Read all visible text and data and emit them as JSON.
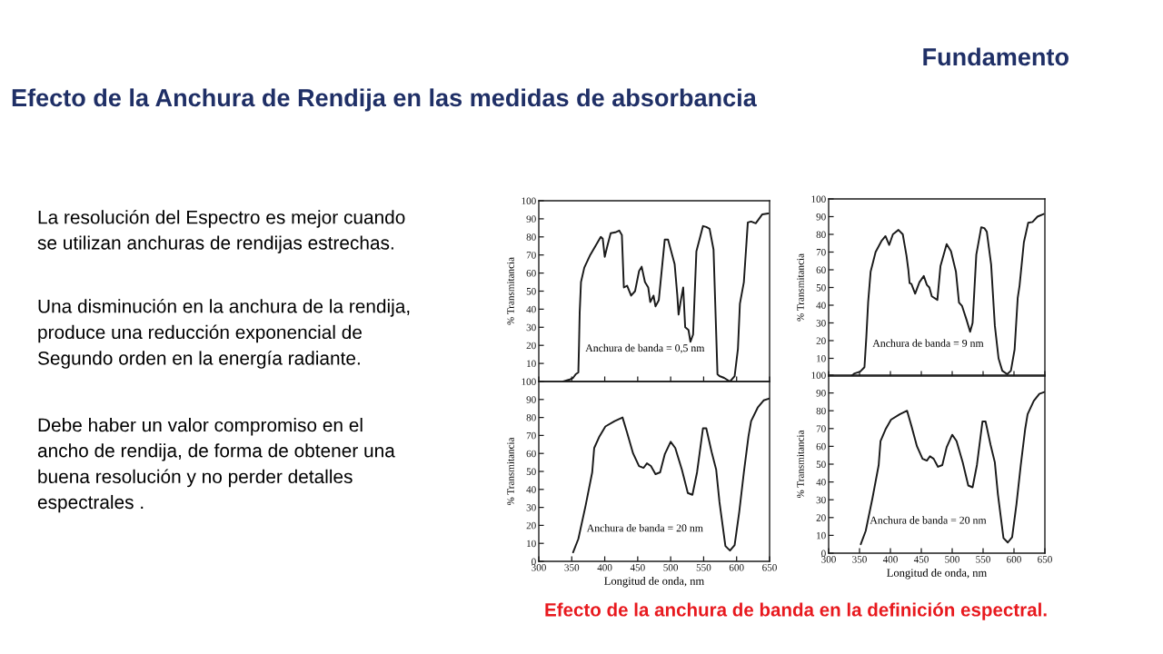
{
  "chart_data": [
    {
      "type": "other",
      "title": "Efecto de la Anchura de Rendija en las medidas de absorbancia",
      "annotations": [
        "Fundamento",
        "La resolución del Espectro es mejor cuando\nse utilizan anchuras de rendijas estrechas.",
        "Una disminución en la anchura de la rendija,\nproduce una reducción exponencial de\nSegundo orden en la energía radiante.",
        "Debe haber un valor compromiso en el\nancho de rendija, de forma de obtener una\nbuena resolución y no perder detalles\nespectrales .",
        "Efecto de la anchura de banda en la definición espectral."
      ]
    },
    {
      "type": "line",
      "ylabel": "% Transmitancia",
      "annotations": [
        "Anchura de banda = 0,5 nm"
      ],
      "xlim": [
        300,
        650
      ],
      "xticks": [
        300,
        350,
        400,
        450,
        500,
        550,
        600,
        650
      ],
      "ylim": [
        0,
        100
      ],
      "yticks": [
        10,
        20,
        30,
        40,
        50,
        60,
        70,
        80,
        90,
        100
      ],
      "tick_labels": "y",
      "series": [
        {
          "color": "#1a1a1a",
          "x": [
            337,
            346,
            352,
            356,
            360,
            361,
            362,
            364,
            369,
            378,
            386,
            394,
            397,
            400,
            404,
            409,
            416,
            422,
            426,
            429,
            434,
            440,
            446,
            452,
            456,
            461,
            466,
            469,
            474,
            477,
            482,
            491,
            496,
            506,
            510,
            512,
            515,
            519,
            522,
            527,
            530,
            534,
            539,
            549,
            554,
            559,
            565,
            571,
            574,
            581,
            590,
            597,
            602,
            605,
            611,
            617,
            622,
            629,
            639,
            648
          ],
          "values": [
            0,
            1,
            2,
            4,
            5,
            20,
            38,
            55,
            63,
            70,
            75,
            80,
            79,
            69,
            75,
            82,
            82.5,
            83.5,
            81,
            52,
            53,
            47.5,
            50,
            61,
            63.5,
            55,
            52,
            44,
            47.5,
            41.5,
            45,
            78.5,
            78.5,
            65,
            48,
            37,
            44,
            52,
            30,
            28.5,
            22,
            26,
            72,
            86,
            85.5,
            84.5,
            73,
            4,
            3,
            2,
            0,
            3,
            18,
            43,
            55,
            88,
            88.5,
            87.5,
            92.5,
            93
          ]
        }
      ]
    },
    {
      "type": "line",
      "ylabel": "% Transmitancia",
      "annotations": [
        "Anchura de banda = 9 nm"
      ],
      "xlim": [
        300,
        650
      ],
      "xticks": [
        300,
        350,
        400,
        450,
        500,
        550,
        600,
        650
      ],
      "ylim": [
        0,
        100
      ],
      "yticks": [
        10,
        20,
        30,
        40,
        50,
        60,
        70,
        80,
        90,
        100
      ],
      "tick_labels": "y",
      "series": [
        {
          "color": "#1a1a1a",
          "x": [
            337,
            342,
            351,
            358,
            361,
            364,
            368,
            376,
            386,
            392,
            398,
            404,
            413,
            420,
            426,
            429,
            431,
            434,
            440,
            447,
            454,
            459,
            463,
            467,
            476,
            481,
            491,
            498,
            506,
            511,
            516,
            523,
            529,
            533,
            539,
            547,
            552,
            556,
            563,
            569,
            575,
            581,
            589,
            595,
            601,
            606,
            609,
            616,
            623,
            630,
            638,
            648
          ],
          "values": [
            0,
            1.5,
            2.5,
            5,
            22,
            42,
            59,
            70,
            76.5,
            79,
            74,
            80,
            82.5,
            80,
            68,
            60,
            52.5,
            52,
            46.5,
            53,
            56.5,
            51.5,
            50,
            45,
            43,
            62,
            74.5,
            70.5,
            59,
            41.5,
            39.5,
            32,
            25,
            30,
            68.5,
            84,
            83.5,
            81.5,
            63,
            28.5,
            10,
            3,
            1,
            3,
            15,
            44,
            51,
            75.5,
            86.5,
            87,
            90,
            91.5
          ]
        }
      ]
    },
    {
      "type": "line",
      "xlabel": "Longitud de onda, nm",
      "ylabel": "% Transmitancia",
      "annotations": [
        "Anchura de banda = 20 nm"
      ],
      "xlim": [
        300,
        650
      ],
      "xticks": [
        300,
        350,
        400,
        450,
        500,
        550,
        600,
        650
      ],
      "ylim": [
        0,
        100
      ],
      "yticks": [
        0,
        10,
        20,
        30,
        40,
        50,
        60,
        70,
        80,
        90,
        100
      ],
      "series": [
        {
          "color": "#1a1a1a",
          "x": [
            352,
            360,
            371,
            381,
            384,
            392,
            401,
            415,
            427,
            434,
            443,
            452,
            459,
            464,
            470,
            477,
            484,
            491,
            500,
            507,
            517,
            526,
            533,
            540,
            549,
            554,
            562,
            569,
            574,
            583,
            590,
            597,
            604,
            611,
            618,
            622,
            632,
            641,
            649
          ],
          "values": [
            5,
            12.5,
            31,
            49.5,
            63,
            69.5,
            75,
            78,
            80,
            71.5,
            60,
            53,
            52,
            54.5,
            53,
            48.5,
            49.5,
            59.5,
            66.5,
            63,
            51,
            38,
            37,
            49.5,
            74,
            74,
            61,
            51,
            33,
            8.5,
            6,
            9,
            27.5,
            49.5,
            69.5,
            78,
            85.5,
            89.5,
            90.5
          ]
        }
      ]
    },
    {
      "type": "line",
      "xlabel": "Longitud de onda, nm",
      "ylabel": "% Transmitancia",
      "annotations": [
        "Anchura de banda = 20 nm"
      ],
      "xlim": [
        300,
        650
      ],
      "xticks": [
        300,
        350,
        400,
        450,
        500,
        550,
        600,
        650
      ],
      "ylim": [
        0,
        100
      ],
      "yticks": [
        0,
        10,
        20,
        30,
        40,
        50,
        60,
        70,
        80,
        90,
        100
      ],
      "series": [
        {
          "color": "#1a1a1a",
          "x": [
            352,
            360,
            371,
            381,
            384,
            392,
            401,
            415,
            427,
            434,
            443,
            452,
            459,
            464,
            470,
            477,
            484,
            491,
            500,
            507,
            517,
            526,
            533,
            540,
            549,
            554,
            562,
            569,
            574,
            583,
            590,
            597,
            604,
            611,
            618,
            622,
            632,
            641,
            649
          ],
          "values": [
            5,
            12.5,
            31,
            49.5,
            63,
            69.5,
            75,
            78,
            80,
            71.5,
            60,
            53,
            52,
            54.5,
            53,
            48.5,
            49.5,
            59.5,
            66.5,
            63,
            51,
            38,
            37,
            49.5,
            74,
            74,
            61,
            51,
            33,
            8.5,
            6,
            9,
            27.5,
            49.5,
            69.5,
            78,
            85.5,
            89.5,
            90.5
          ]
        }
      ]
    }
  ]
}
